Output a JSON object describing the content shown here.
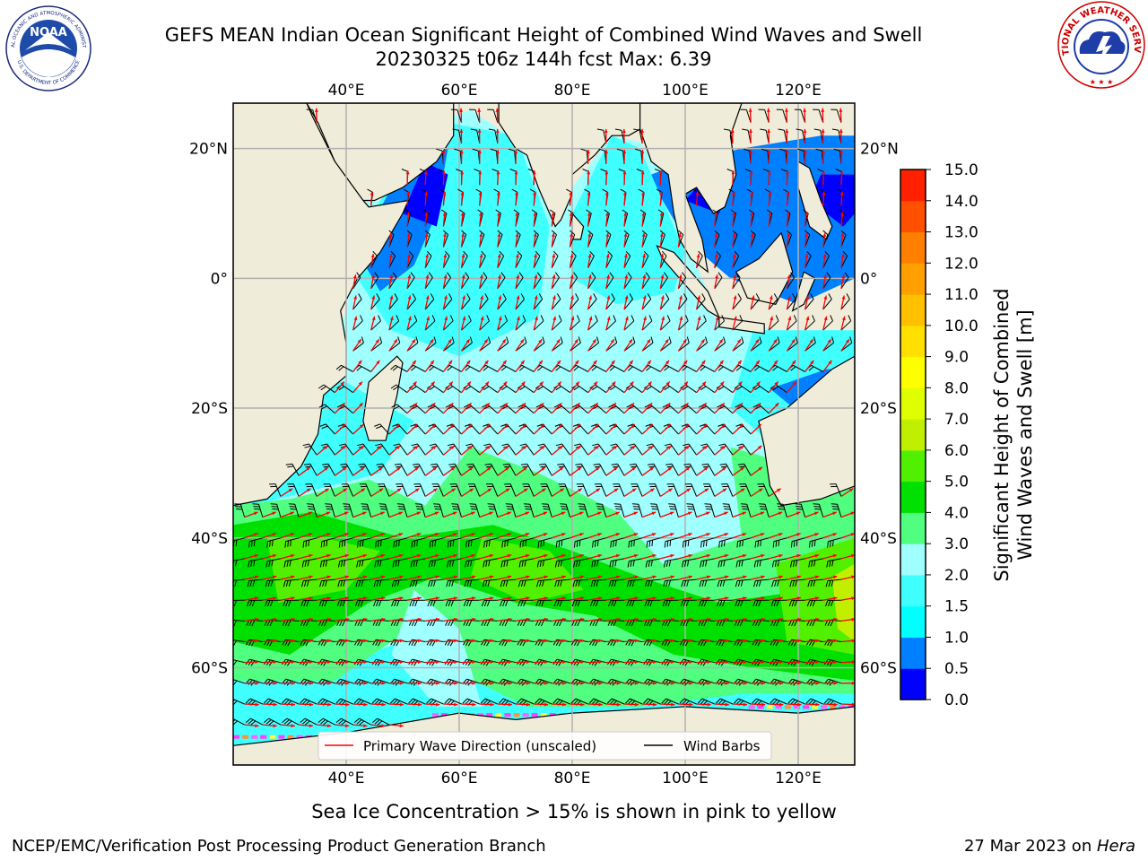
{
  "header": {
    "title_line1": "GEFS MEAN Indian Ocean Significant Height of Combined Wind Waves and Swell",
    "title_line2": "20230325 t06z 144h fcst   Max: 6.39"
  },
  "logos": {
    "left": {
      "icon": "noaa-logo-icon",
      "text": "NOAA",
      "ring_top": "NATIONAL OCEANIC AND ATMOSPHERIC ADMINISTRATION",
      "ring_bottom": "U.S. DEPARTMENT OF COMMERCE"
    },
    "right": {
      "icon": "nws-logo-icon",
      "ring": "NATIONAL WEATHER SERVICE"
    }
  },
  "map": {
    "lon_range": [
      20,
      130
    ],
    "lat_range": [
      -75,
      27
    ],
    "lon_ticks": [
      "40°E",
      "60°E",
      "80°E",
      "100°E",
      "120°E"
    ],
    "lon_tick_values": [
      40,
      60,
      80,
      100,
      120
    ],
    "lat_ticks": [
      "20°N",
      "0°",
      "20°S",
      "40°S",
      "60°S"
    ],
    "lat_tick_values": [
      20,
      0,
      -20,
      -40,
      -60
    ],
    "grid": true,
    "land_color": "#efecd9",
    "wave_arrow_color": "#ff0000",
    "wind_barb_color": "#000000",
    "legend": {
      "placement": "lower-center",
      "wave_label": "Primary Wave Direction (unscaled)",
      "wind_label": "Wind Barbs"
    },
    "ice_note": "Sea Ice Concentration > 15% is shown in pink to yellow"
  },
  "colorbar": {
    "label_line1": "Significant Height of Combined",
    "label_line2": "Wind Waves and Swell [m]",
    "ticks": [
      "0.0",
      "0.5",
      "1.0",
      "1.5",
      "2.0",
      "3.0",
      "4.0",
      "5.0",
      "6.0",
      "7.0",
      "8.0",
      "9.0",
      "10.0",
      "11.0",
      "12.0",
      "13.0",
      "14.0",
      "15.0"
    ],
    "colors": [
      "#0000ff",
      "#0080ff",
      "#00ffff",
      "#40ffff",
      "#a0ffff",
      "#50ff80",
      "#00e000",
      "#50f000",
      "#c0f000",
      "#e0ff00",
      "#ffff00",
      "#ffe000",
      "#ffc000",
      "#ffa000",
      "#ff8000",
      "#ff5000",
      "#ff2000"
    ]
  },
  "footer": {
    "left": "NCEP/EMC/Verification Post Processing Product Generation Branch",
    "right_prefix": "27 Mar 2023 on ",
    "right_host": "Hera"
  }
}
